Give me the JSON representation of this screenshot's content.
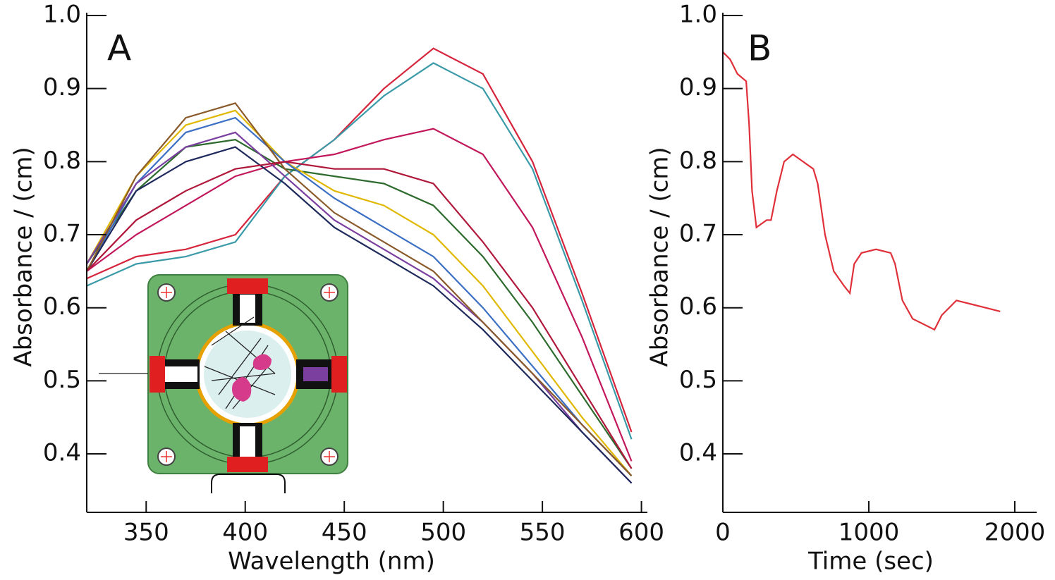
{
  "chart_data": [
    {
      "type": "line",
      "label": "A",
      "x_label": "Wavelength (nm)",
      "y_label": "Absorbance / (cm)",
      "xlim": [
        320,
        603
      ],
      "ylim": [
        0.32,
        1.0
      ],
      "xticks": [
        350,
        400,
        450,
        500,
        550,
        600
      ],
      "yticks": [
        0.4,
        0.5,
        0.6,
        0.7,
        0.8,
        0.9,
        {
          "value": 1.0,
          "label": "1.0"
        }
      ],
      "x": [
        320,
        345,
        370,
        395,
        420,
        445,
        470,
        495,
        520,
        545,
        570,
        595
      ],
      "series": [
        {
          "color": "#d6243c",
          "values": [
            0.64,
            0.67,
            0.68,
            0.7,
            0.78,
            0.83,
            0.9,
            0.955,
            0.92,
            0.8,
            0.62,
            0.43
          ]
        },
        {
          "color": "#3a9aa8",
          "values": [
            0.63,
            0.66,
            0.67,
            0.69,
            0.78,
            0.83,
            0.89,
            0.935,
            0.9,
            0.79,
            0.61,
            0.42
          ]
        },
        {
          "color": "#c2185b",
          "values": [
            0.65,
            0.7,
            0.74,
            0.78,
            0.8,
            0.81,
            0.83,
            0.845,
            0.81,
            0.71,
            0.56,
            0.39
          ]
        },
        {
          "color": "#2e6b2e",
          "values": [
            0.66,
            0.76,
            0.82,
            0.83,
            0.79,
            0.78,
            0.77,
            0.74,
            0.67,
            0.58,
            0.48,
            0.38
          ]
        },
        {
          "color": "#e0b800",
          "values": [
            0.66,
            0.78,
            0.85,
            0.87,
            0.8,
            0.76,
            0.74,
            0.7,
            0.63,
            0.54,
            0.45,
            0.37
          ]
        },
        {
          "color": "#3b6fc4",
          "values": [
            0.65,
            0.77,
            0.84,
            0.86,
            0.8,
            0.75,
            0.71,
            0.67,
            0.6,
            0.52,
            0.44,
            0.37
          ]
        },
        {
          "color": "#7b3fa0",
          "values": [
            0.66,
            0.77,
            0.82,
            0.84,
            0.78,
            0.72,
            0.68,
            0.64,
            0.58,
            0.51,
            0.43,
            0.36
          ]
        },
        {
          "color": "#1f2a5c",
          "values": [
            0.65,
            0.76,
            0.8,
            0.82,
            0.77,
            0.71,
            0.67,
            0.63,
            0.57,
            0.5,
            0.43,
            0.36
          ]
        },
        {
          "color": "#8a5a2b",
          "values": [
            0.65,
            0.78,
            0.86,
            0.88,
            0.79,
            0.73,
            0.69,
            0.65,
            0.58,
            0.51,
            0.44,
            0.37
          ]
        },
        {
          "color": "#b0173a",
          "values": [
            0.65,
            0.72,
            0.76,
            0.79,
            0.8,
            0.79,
            0.79,
            0.77,
            0.69,
            0.6,
            0.49,
            0.38
          ]
        }
      ]
    },
    {
      "type": "line",
      "label": "B",
      "x_label": "Time (sec)",
      "y_label": "Absorbance / (cm)",
      "xlim": [
        0,
        2150
      ],
      "ylim": [
        0.32,
        1.0
      ],
      "xticks": [
        0,
        1000,
        2000
      ],
      "yticks": [
        0.4,
        0.5,
        0.6,
        0.7,
        0.8,
        0.9,
        {
          "value": 1.0,
          "label": "1.0"
        }
      ],
      "x": [
        0,
        50,
        100,
        160,
        180,
        200,
        230,
        300,
        330,
        370,
        420,
        480,
        550,
        620,
        650,
        700,
        760,
        830,
        870,
        900,
        950,
        1050,
        1150,
        1180,
        1230,
        1300,
        1400,
        1450,
        1500,
        1600,
        1700,
        1800,
        1900
      ],
      "series": [
        {
          "color": "#e0303a",
          "values": [
            0.95,
            0.94,
            0.92,
            0.91,
            0.85,
            0.76,
            0.71,
            0.72,
            0.72,
            0.76,
            0.8,
            0.81,
            0.8,
            0.79,
            0.77,
            0.7,
            0.65,
            0.63,
            0.62,
            0.66,
            0.675,
            0.68,
            0.675,
            0.66,
            0.61,
            0.585,
            0.575,
            0.57,
            0.59,
            0.61,
            0.605,
            0.6,
            0.595
          ]
        }
      ]
    }
  ]
}
